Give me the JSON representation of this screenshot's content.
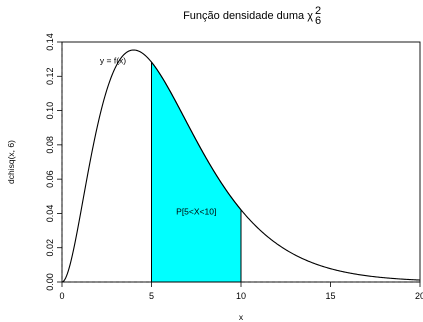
{
  "chart_data": {
    "type": "line",
    "title": "Função densidade duma χ",
    "title_superscript": "2",
    "title_subscript": "6",
    "xlabel": "x",
    "ylabel": "dchisq(x, 6)",
    "xlim": [
      0,
      20
    ],
    "ylim": [
      0,
      0.14
    ],
    "x_ticks": [
      0,
      5,
      10,
      15,
      20
    ],
    "y_ticks": [
      0.0,
      0.02,
      0.04,
      0.06,
      0.08,
      0.1,
      0.12,
      0.14
    ],
    "y_tick_labels": [
      "0.00",
      "0.02",
      "0.04",
      "0.06",
      "0.08",
      "0.10",
      "0.12",
      "0.14"
    ],
    "series": [
      {
        "name": "y = f(x)",
        "function": "chi-square density, df = 6",
        "df": 6,
        "color": "#000000"
      }
    ],
    "shaded_region": {
      "from": 5,
      "to": 10,
      "color": "#00FFFF",
      "label": "P[5<X<10]"
    },
    "reference_lines": [
      {
        "orientation": "horizontal",
        "value": 0,
        "style": "dashed"
      },
      {
        "orientation": "vertical",
        "value": 0,
        "style": "dashed"
      }
    ],
    "annotations": [
      {
        "text": "y = f(x)",
        "x": 2.85,
        "y": 0.1275
      },
      {
        "text": "P[5<X<10]",
        "x": 7.5,
        "y": 0.0395
      }
    ],
    "grid": false,
    "legend": "none"
  }
}
